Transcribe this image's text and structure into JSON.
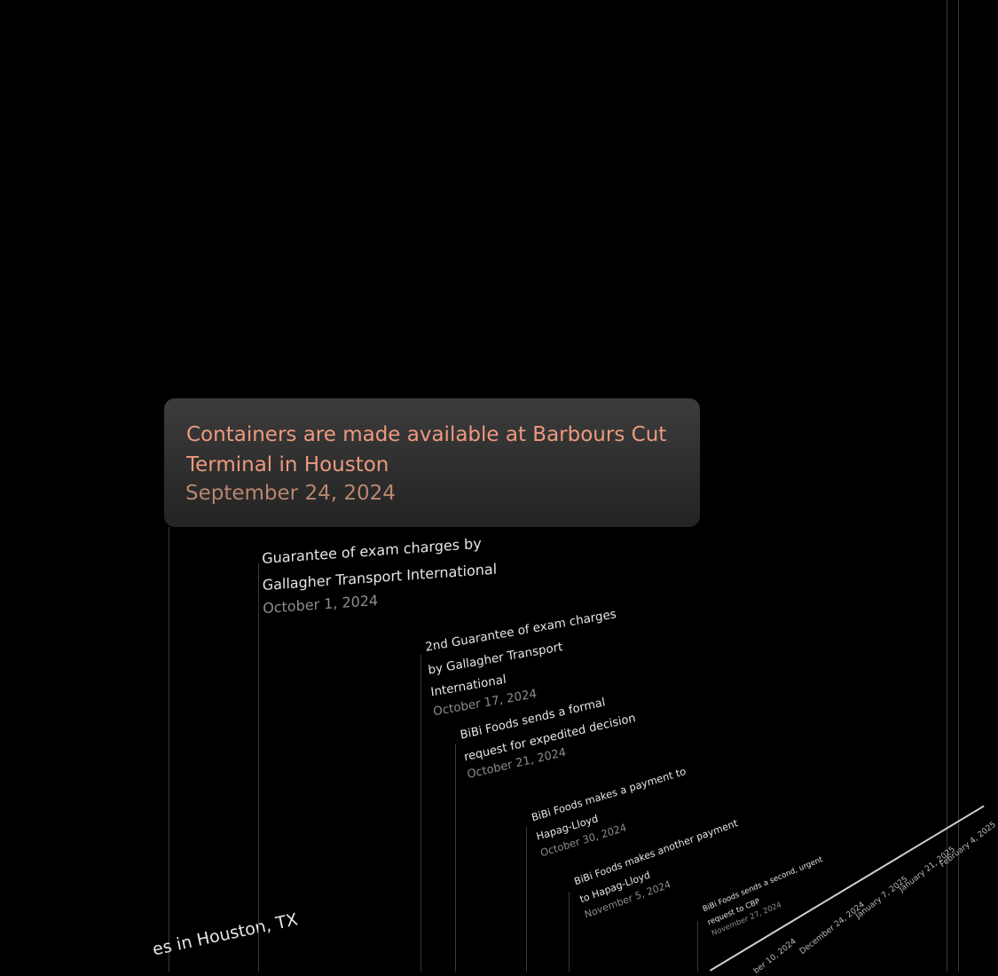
{
  "highlight": {
    "title": "Containers are made available at Barbours Cut Terminal in Houston",
    "date": "September 24, 2024"
  },
  "events": [
    {
      "title": "Guarantee of exam charges by Gallagher Transport International",
      "date": "October 1, 2024"
    },
    {
      "title": "2nd Guarantee of exam charges by Gallagher Transport International",
      "date": "October 17, 2024"
    },
    {
      "title": "BiBi Foods sends a formal request for expedited decision",
      "date": "October 21, 2024"
    },
    {
      "title": "BiBi Foods makes a payment to Hapag-Lloyd",
      "date": "October 30, 2024"
    },
    {
      "title": "BiBi Foods makes another payment to Hapag-Lloyd",
      "date": "November 5, 2024"
    },
    {
      "title": "BiBi Foods sends a second, urgent request to CBP",
      "date": "November 27, 2024"
    }
  ],
  "partial_label": "es in Houston, TX",
  "axis_labels": [
    "ber 10, 2024",
    "December 24, 2024",
    "January 7, 2025",
    "January 21, 2025",
    "February 4, 2025"
  ]
}
